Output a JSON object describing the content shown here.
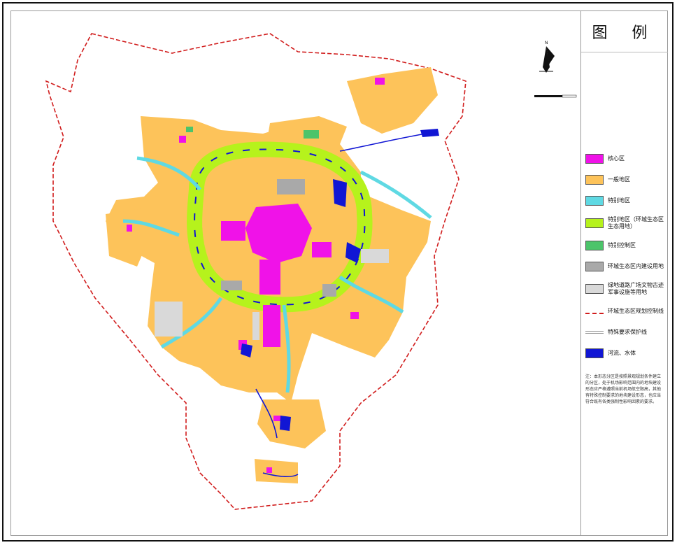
{
  "legend": {
    "title": "图    例",
    "items": [
      {
        "key": "core",
        "label": "核心区",
        "color": "#f012e8",
        "style": "fill"
      },
      {
        "key": "general",
        "label": "一般地区",
        "color": "#fdc35a",
        "style": "fill"
      },
      {
        "key": "special",
        "label": "特别地区",
        "color": "#5fd9e3",
        "style": "fill"
      },
      {
        "key": "eco",
        "label": "特别地区（环城生态区生态用地）",
        "color": "#b6f21c",
        "style": "fill"
      },
      {
        "key": "control",
        "label": "特别控制区",
        "color": "#4cc46a",
        "style": "fill"
      },
      {
        "key": "built",
        "label": "环城生态区内建设用地",
        "color": "#a9a9a9",
        "style": "fill"
      },
      {
        "key": "green",
        "label": "绿地道路广场文物古迹军事设施等用地",
        "color": "#d9d9d9",
        "style": "fill"
      },
      {
        "key": "boundary",
        "label": "环城生态区规划控制线",
        "color": "#d11d1d",
        "style": "dash"
      },
      {
        "key": "protect",
        "label": "特殊要求保护线",
        "color": "#9a9a9a",
        "style": "line"
      },
      {
        "key": "water",
        "label": "河流、水体",
        "color": "#1116d4",
        "style": "fill"
      }
    ]
  },
  "note": "注：本形态分区是按照景观规划条件建立的分区，处于机场影响范围内的地块建设形态应严格遵照当前机场航空限高，其他有特殊控制要求的地块建设形态，也应当符合既有各类强制性影响因素的要求。",
  "compass": {
    "label": "N"
  }
}
